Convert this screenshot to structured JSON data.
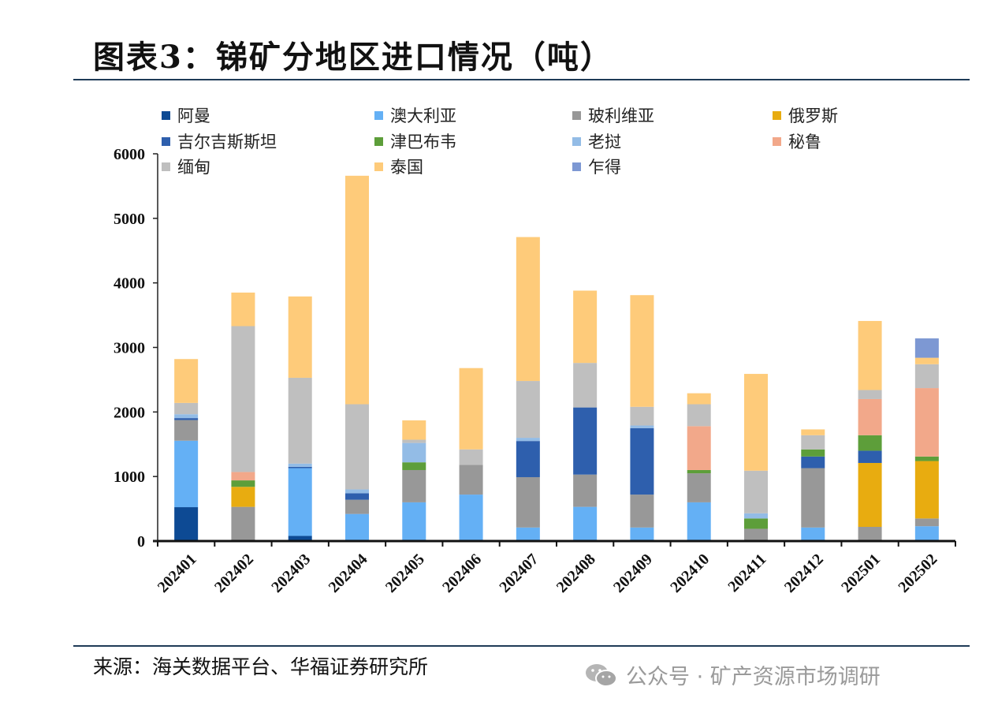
{
  "title": "图表3：锑矿分地区进口情况（吨）",
  "footer": {
    "source": "来源：海关数据平台、华福证券研究所",
    "watermark": "公众号 · 矿产资源市场调研"
  },
  "chart_data": {
    "type": "bar",
    "stacked": true,
    "title": "锑矿分地区进口情况（吨）",
    "xlabel": "",
    "ylabel": "",
    "ylim": [
      0,
      6000
    ],
    "yticks": [
      0,
      1000,
      2000,
      3000,
      4000,
      5000,
      6000
    ],
    "grid": false,
    "legend_position": "top",
    "categories": [
      "202401",
      "202402",
      "202403",
      "202404",
      "202405",
      "202406",
      "202407",
      "202408",
      "202409",
      "202410",
      "202411",
      "202412",
      "202501",
      "202502"
    ],
    "series": [
      {
        "name": "阿曼",
        "color": "#0d4a94",
        "values": [
          525,
          0,
          80,
          0,
          0,
          0,
          0,
          0,
          0,
          0,
          0,
          0,
          0,
          0
        ]
      },
      {
        "name": "澳大利亚",
        "color": "#64b0f5",
        "values": [
          1030,
          0,
          1050,
          420,
          600,
          720,
          210,
          530,
          210,
          600,
          0,
          210,
          0,
          230
        ]
      },
      {
        "name": "玻利维亚",
        "color": "#989898",
        "values": [
          320,
          530,
          0,
          220,
          500,
          460,
          780,
          500,
          510,
          450,
          190,
          920,
          220,
          120
        ]
      },
      {
        "name": "俄罗斯",
        "color": "#e8ac10",
        "values": [
          0,
          310,
          0,
          0,
          0,
          0,
          0,
          0,
          0,
          0,
          0,
          0,
          990,
          890
        ]
      },
      {
        "name": "吉尔吉斯斯坦",
        "color": "#2e5fad",
        "values": [
          30,
          0,
          20,
          100,
          0,
          0,
          560,
          1040,
          1030,
          0,
          0,
          180,
          190,
          0
        ]
      },
      {
        "name": "津巴布韦",
        "color": "#5d9e3a",
        "values": [
          0,
          100,
          0,
          0,
          120,
          0,
          0,
          0,
          0,
          50,
          160,
          110,
          240,
          70
        ]
      },
      {
        "name": "老挝",
        "color": "#93bce6",
        "values": [
          60,
          0,
          50,
          60,
          300,
          0,
          50,
          0,
          40,
          0,
          80,
          0,
          0,
          0
        ]
      },
      {
        "name": "秘鲁",
        "color": "#f2a88a",
        "values": [
          0,
          130,
          0,
          0,
          0,
          0,
          0,
          0,
          0,
          680,
          0,
          0,
          560,
          1060
        ]
      },
      {
        "name": "缅甸",
        "color": "#bfbfbf",
        "values": [
          175,
          2260,
          1330,
          1320,
          50,
          240,
          880,
          690,
          290,
          340,
          660,
          220,
          140,
          370
        ]
      },
      {
        "name": "泰国",
        "color": "#fecb7a",
        "values": [
          680,
          520,
          1260,
          3540,
          300,
          1260,
          2230,
          1120,
          1730,
          170,
          1500,
          90,
          1070,
          100
        ]
      },
      {
        "name": "乍得",
        "color": "#7d98d3",
        "values": [
          0,
          0,
          0,
          0,
          0,
          0,
          0,
          0,
          0,
          0,
          0,
          0,
          0,
          300
        ]
      }
    ]
  }
}
